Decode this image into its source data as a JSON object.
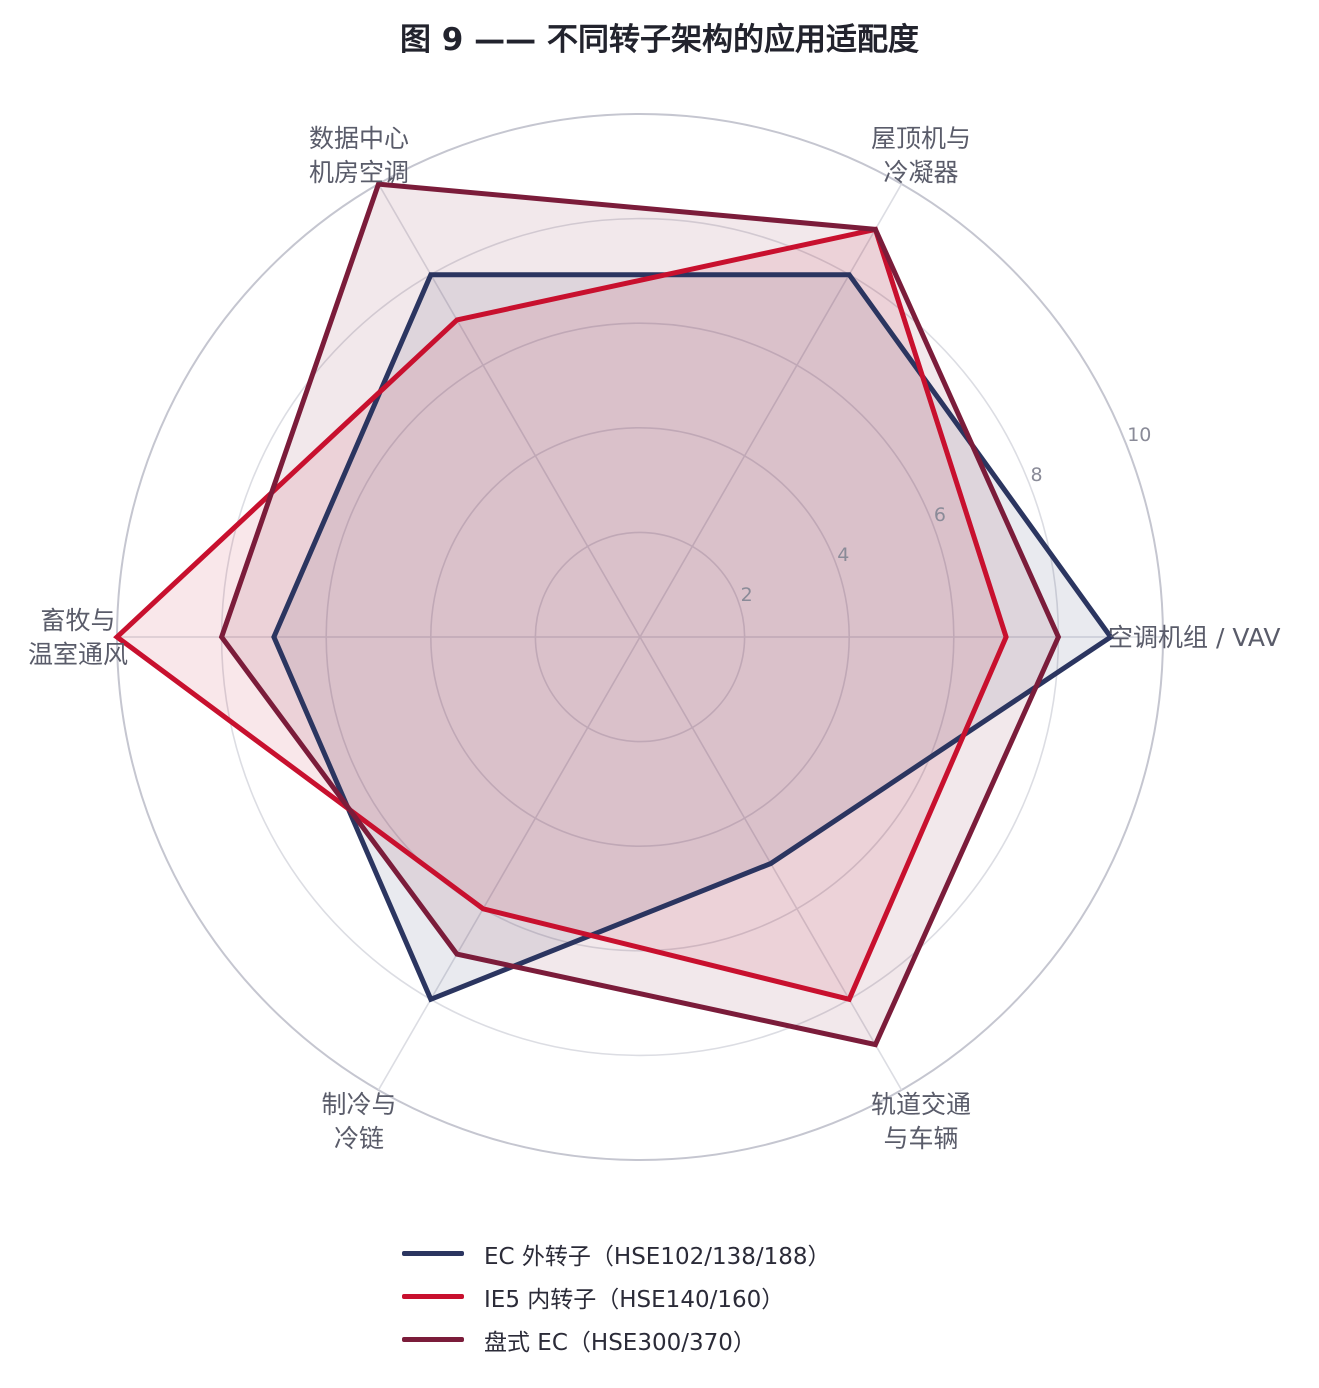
{
  "title": "图 9 —— 不同转子架构的应用适配度",
  "chart_data": {
    "type": "radar",
    "title": "图 9 —— 不同转子架构的应用适配度",
    "axes": [
      [
        "空调机组 / VAV"
      ],
      [
        "屋顶机与",
        "冷凝器"
      ],
      [
        "数据中心",
        "机房空调"
      ],
      [
        "畜牧与",
        "温室通风"
      ],
      [
        "制冷与",
        "冷链"
      ],
      [
        "轨道交通",
        "与车辆"
      ]
    ],
    "radial_ticks": [
      "2",
      "4",
      "6",
      "8",
      "10"
    ],
    "range": [
      0,
      10
    ],
    "series": [
      {
        "name": "EC 外转子（HSE102/138/188）",
        "values": [
          9,
          8,
          8,
          7,
          8,
          5
        ],
        "color": "#2b3560",
        "fill_opacity": 0.1
      },
      {
        "name": "IE5 内转子（HSE140/160）",
        "values": [
          7,
          9,
          7,
          10,
          6,
          8
        ],
        "color": "#c8102e",
        "fill_opacity": 0.1
      },
      {
        "name": "盘式 EC（HSE300/370）",
        "values": [
          8,
          9,
          10,
          8,
          7,
          9
        ],
        "color": "#7b1c3a",
        "fill_opacity": 0.1
      }
    ],
    "legend_position": "bottom",
    "grid": true
  }
}
